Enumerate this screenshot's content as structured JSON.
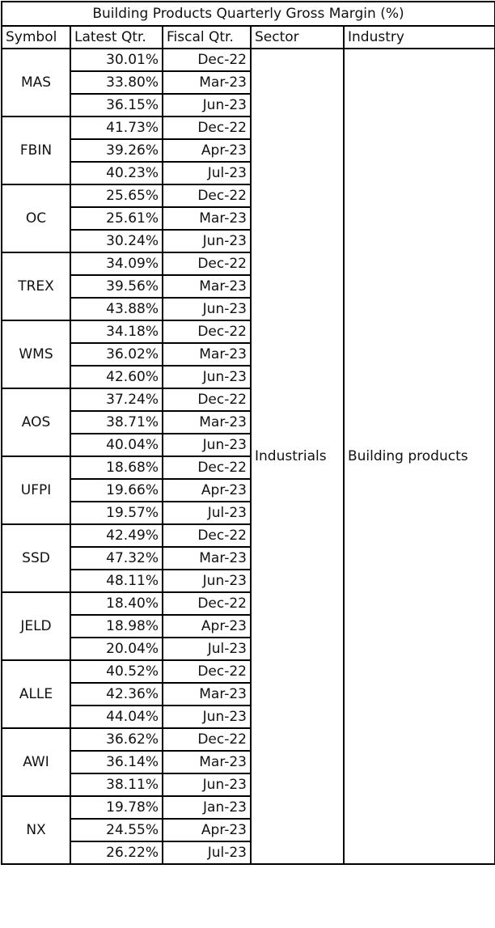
{
  "title": "Building Products Quarterly Gross Margin (%)",
  "headers": [
    "Symbol",
    "Latest Qtr.",
    "Fiscal Qtr.",
    "Sector",
    "Industry"
  ],
  "sector": "Industrials",
  "industry": "Building products",
  "groups": [
    {
      "symbol": "MAS",
      "rows": [
        [
          "30.01%",
          "Dec-22"
        ],
        [
          "33.80%",
          "Mar-23"
        ],
        [
          "36.15%",
          "Jun-23"
        ]
      ]
    },
    {
      "symbol": "FBIN",
      "rows": [
        [
          "41.73%",
          "Dec-22"
        ],
        [
          "39.26%",
          "Apr-23"
        ],
        [
          "40.23%",
          "Jul-23"
        ]
      ]
    },
    {
      "symbol": "OC",
      "rows": [
        [
          "25.65%",
          "Dec-22"
        ],
        [
          "25.61%",
          "Mar-23"
        ],
        [
          "30.24%",
          "Jun-23"
        ]
      ]
    },
    {
      "symbol": "TREX",
      "rows": [
        [
          "34.09%",
          "Dec-22"
        ],
        [
          "39.56%",
          "Mar-23"
        ],
        [
          "43.88%",
          "Jun-23"
        ]
      ]
    },
    {
      "symbol": "WMS",
      "rows": [
        [
          "34.18%",
          "Dec-22"
        ],
        [
          "36.02%",
          "Mar-23"
        ],
        [
          "42.60%",
          "Jun-23"
        ]
      ]
    },
    {
      "symbol": "AOS",
      "rows": [
        [
          "37.24%",
          "Dec-22"
        ],
        [
          "38.71%",
          "Mar-23"
        ],
        [
          "40.04%",
          "Jun-23"
        ]
      ]
    },
    {
      "symbol": "UFPI",
      "rows": [
        [
          "18.68%",
          "Dec-22"
        ],
        [
          "19.66%",
          "Apr-23"
        ],
        [
          "19.57%",
          "Jul-23"
        ]
      ]
    },
    {
      "symbol": "SSD",
      "rows": [
        [
          "42.49%",
          "Dec-22"
        ],
        [
          "47.32%",
          "Mar-23"
        ],
        [
          "48.11%",
          "Jun-23"
        ]
      ]
    },
    {
      "symbol": "JELD",
      "rows": [
        [
          "18.40%",
          "Dec-22"
        ],
        [
          "18.98%",
          "Apr-23"
        ],
        [
          "20.04%",
          "Jul-23"
        ]
      ]
    },
    {
      "symbol": "ALLE",
      "rows": [
        [
          "40.52%",
          "Dec-22"
        ],
        [
          "42.36%",
          "Mar-23"
        ],
        [
          "44.04%",
          "Jun-23"
        ]
      ]
    },
    {
      "symbol": "AWI",
      "rows": [
        [
          "36.62%",
          "Dec-22"
        ],
        [
          "36.14%",
          "Mar-23"
        ],
        [
          "38.11%",
          "Jun-23"
        ]
      ]
    },
    {
      "symbol": "NX",
      "rows": [
        [
          "19.78%",
          "Jan-23"
        ],
        [
          "24.55%",
          "Apr-23"
        ],
        [
          "26.22%",
          "Jul-23"
        ]
      ]
    }
  ]
}
